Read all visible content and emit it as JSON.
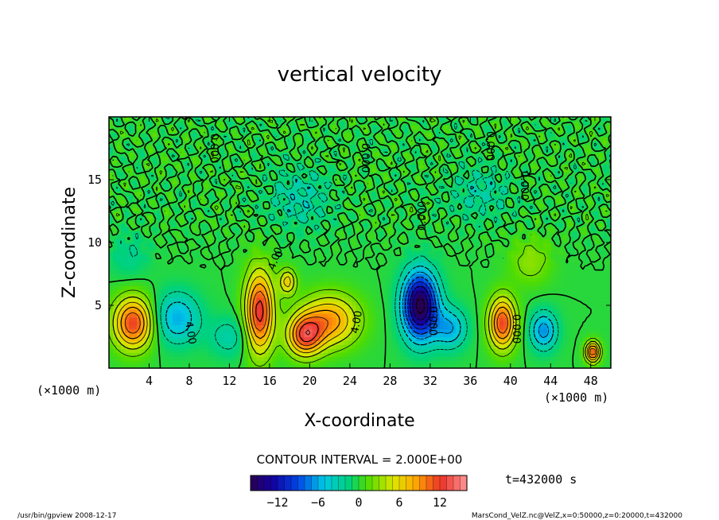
{
  "chart_data": {
    "type": "heatmap",
    "title": "vertical velocity",
    "xlabel": "X-coordinate",
    "ylabel": "Z-coordinate",
    "x_unit": "(×1000 m)",
    "z_unit": "(×1000 m)",
    "xlim": [
      0,
      50
    ],
    "ylim": [
      0,
      20
    ],
    "x_ticks": [
      4,
      8,
      12,
      16,
      20,
      24,
      28,
      32,
      36,
      40,
      44,
      48
    ],
    "y_ticks": [
      5,
      10,
      15
    ],
    "contour_interval_text": "CONTOUR INTERVAL = 2.000E+00",
    "contour_labels": [
      "4.00",
      "4.00",
      "4.00",
      "0.000",
      "0.000",
      "0.000",
      "0.000",
      "0.000",
      "0.000",
      "0.000"
    ],
    "color_range": [
      -16,
      16
    ],
    "colorbar_ticks": [
      -12,
      -6,
      0,
      6,
      12
    ],
    "time_text": "t=432000 s",
    "features": [
      {
        "x": 2.4,
        "z": 3.6,
        "w": 12,
        "sx": 1.9,
        "sz": 2.0
      },
      {
        "x": 6.8,
        "z": 4.0,
        "w": -6,
        "sx": 2.2,
        "sz": 2.0
      },
      {
        "x": 15.0,
        "z": 4.5,
        "w": 13,
        "sx": 1.4,
        "sz": 3.2
      },
      {
        "x": 19.5,
        "z": 2.6,
        "w": 11,
        "sx": 1.7,
        "sz": 1.6
      },
      {
        "x": 22.0,
        "z": 3.8,
        "w": 9,
        "sx": 2.8,
        "sz": 2.0
      },
      {
        "x": 12.0,
        "z": 2.5,
        "w": -3,
        "sx": 2.0,
        "sz": 1.6
      },
      {
        "x": 17.8,
        "z": 6.9,
        "w": 7,
        "sx": 0.8,
        "sz": 1.0
      },
      {
        "x": 31.0,
        "z": 5.0,
        "w": -17,
        "sx": 1.7,
        "sz": 2.6
      },
      {
        "x": 34.0,
        "z": 3.2,
        "w": -6,
        "sx": 1.6,
        "sz": 1.6
      },
      {
        "x": 39.2,
        "z": 3.6,
        "w": 12,
        "sx": 1.3,
        "sz": 2.0
      },
      {
        "x": 43.3,
        "z": 3.0,
        "w": -7,
        "sx": 1.3,
        "sz": 1.5
      },
      {
        "x": 48.2,
        "z": 1.3,
        "w": 12,
        "sx": 0.7,
        "sz": 0.8
      },
      {
        "x": 19.0,
        "z": 13.5,
        "w": -3,
        "sx": 3.0,
        "sz": 2.2
      },
      {
        "x": 37.0,
        "z": 14.0,
        "w": -2.5,
        "sx": 3.0,
        "sz": 2.0
      },
      {
        "x": 2.0,
        "z": 9.0,
        "w": -2,
        "sx": 2.0,
        "sz": 1.8
      },
      {
        "x": 42.0,
        "z": 8.5,
        "w": 3,
        "sx": 2.0,
        "sz": 1.8
      }
    ]
  },
  "footer": {
    "left": "/usr/bin/gpview   2008-12-17",
    "right": "MarsCond_VelZ.nc@VelZ,x=0:50000,z=0:20000,t=432000"
  }
}
